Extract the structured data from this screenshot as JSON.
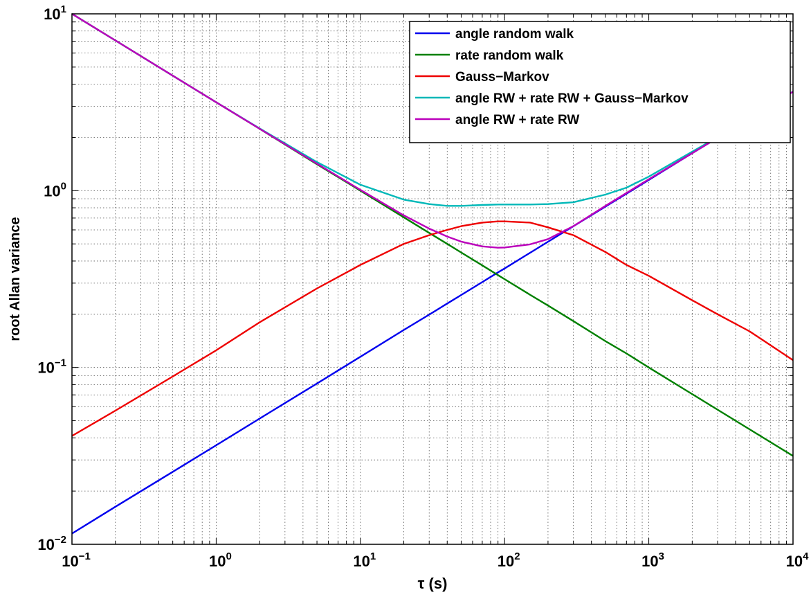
{
  "chart_data": {
    "type": "line",
    "x_scale": "log",
    "y_scale": "log",
    "xlim": [
      0.1,
      10000
    ],
    "ylim": [
      0.01,
      10
    ],
    "xlabel": "τ (s)",
    "ylabel": "root Allan variance",
    "grid": true,
    "legend_position": "top-right",
    "x_ticks": [
      {
        "base": "10",
        "exp": "−1",
        "value": 0.1
      },
      {
        "base": "10",
        "exp": "0",
        "value": 1
      },
      {
        "base": "10",
        "exp": "1",
        "value": 10
      },
      {
        "base": "10",
        "exp": "2",
        "value": 100
      },
      {
        "base": "10",
        "exp": "3",
        "value": 1000
      },
      {
        "base": "10",
        "exp": "4",
        "value": 10000
      }
    ],
    "y_ticks": [
      {
        "base": "10",
        "exp": "−2",
        "value": 0.01
      },
      {
        "base": "10",
        "exp": "−1",
        "value": 0.1
      },
      {
        "base": "10",
        "exp": "0",
        "value": 1
      },
      {
        "base": "10",
        "exp": "1",
        "value": 10
      }
    ],
    "x": [
      0.1,
      0.2,
      0.5,
      1,
      2,
      5,
      10,
      20,
      30,
      40,
      50,
      70,
      90,
      100,
      150,
      200,
      300,
      500,
      700,
      1000,
      2000,
      3000,
      5000,
      10000
    ],
    "series": [
      {
        "name": "angle random walk",
        "color": "#0000ee",
        "values": [
          0.0115,
          0.0163,
          0.0257,
          0.0363,
          0.0514,
          0.0812,
          0.115,
          0.163,
          0.199,
          0.23,
          0.257,
          0.304,
          0.345,
          0.363,
          0.445,
          0.514,
          0.629,
          0.812,
          0.961,
          1.15,
          1.63,
          1.99,
          2.57,
          3.63
        ]
      },
      {
        "name": "rate random walk",
        "color": "#008000",
        "values": [
          10.0,
          7.07,
          4.47,
          3.16,
          2.24,
          1.41,
          1.0,
          0.707,
          0.577,
          0.5,
          0.447,
          0.378,
          0.333,
          0.316,
          0.258,
          0.224,
          0.183,
          0.141,
          0.12,
          0.1,
          0.0707,
          0.0577,
          0.0447,
          0.0316
        ]
      },
      {
        "name": "Gauss−Markov",
        "color": "#ee0000",
        "values": [
          0.041,
          0.057,
          0.089,
          0.125,
          0.18,
          0.28,
          0.38,
          0.5,
          0.56,
          0.6,
          0.63,
          0.66,
          0.67,
          0.67,
          0.66,
          0.62,
          0.56,
          0.45,
          0.38,
          0.33,
          0.24,
          0.2,
          0.16,
          0.11
        ]
      },
      {
        "name": "angle RW + rate RW + Gauss−Markov",
        "color": "#00b8b8",
        "values": [
          10.0,
          7.07,
          4.47,
          3.16,
          2.25,
          1.45,
          1.08,
          0.89,
          0.84,
          0.82,
          0.82,
          0.83,
          0.835,
          0.835,
          0.835,
          0.84,
          0.86,
          0.95,
          1.04,
          1.2,
          1.66,
          2.01,
          2.58,
          3.64
        ]
      },
      {
        "name": "angle RW + rate RW",
        "color": "#bb00bb",
        "values": [
          10.0,
          7.07,
          4.47,
          3.16,
          2.24,
          1.42,
          1.01,
          0.725,
          0.61,
          0.55,
          0.515,
          0.484,
          0.476,
          0.477,
          0.497,
          0.532,
          0.63,
          0.82,
          0.97,
          1.16,
          1.63,
          1.99,
          2.57,
          3.63
        ]
      }
    ]
  }
}
